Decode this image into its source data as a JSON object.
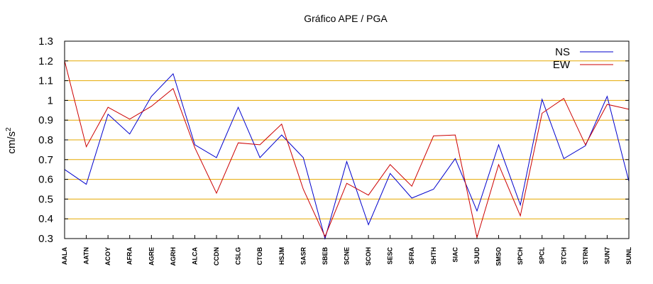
{
  "chart_data": {
    "type": "line",
    "title": "Gráfico  APE / PGA",
    "ylabel": "cm/s",
    "ylabel_sup": "2",
    "ylim": [
      0.3,
      1.3
    ],
    "yticks": [
      "0.3",
      "0.4",
      "0.5",
      "0.6",
      "0.7",
      "0.8",
      "0.9",
      "1",
      "1.1",
      "1.2",
      "1.3"
    ],
    "grid": true,
    "legend_position": "top-right",
    "categories": [
      "AALA",
      "AATN",
      "ACOY",
      "AFRA",
      "AGRE",
      "AGRH",
      "ALCA",
      "CCDN",
      "CSLG",
      "CTOB",
      "HSJM",
      "SASR",
      "SBEB",
      "SCNE",
      "SCOH",
      "SESC",
      "SFRA",
      "SHTH",
      "SIAC",
      "SJUD",
      "SMSO",
      "SPCH",
      "SPCL",
      "STCH",
      "STRN",
      "SUN7",
      "SUNL"
    ],
    "series": [
      {
        "name": "NS",
        "color": "#0000cc",
        "values": [
          0.65,
          0.575,
          0.93,
          0.83,
          1.02,
          1.135,
          0.775,
          0.71,
          0.965,
          0.71,
          0.825,
          0.71,
          0.3,
          0.69,
          0.37,
          0.63,
          0.505,
          0.55,
          0.705,
          0.44,
          0.775,
          0.47,
          1.005,
          0.705,
          0.77,
          1.02,
          0.59
        ]
      },
      {
        "name": "EW",
        "color": "#cc0000",
        "values": [
          1.2,
          0.765,
          0.965,
          0.905,
          0.97,
          1.06,
          0.76,
          0.53,
          0.785,
          0.775,
          0.88,
          0.55,
          0.31,
          0.58,
          0.52,
          0.675,
          0.565,
          0.82,
          0.825,
          0.305,
          0.675,
          0.415,
          0.935,
          1.01,
          0.775,
          0.98,
          0.955
        ]
      }
    ],
    "colors": {
      "grid": "#e6a800",
      "axis": "#000000"
    }
  }
}
